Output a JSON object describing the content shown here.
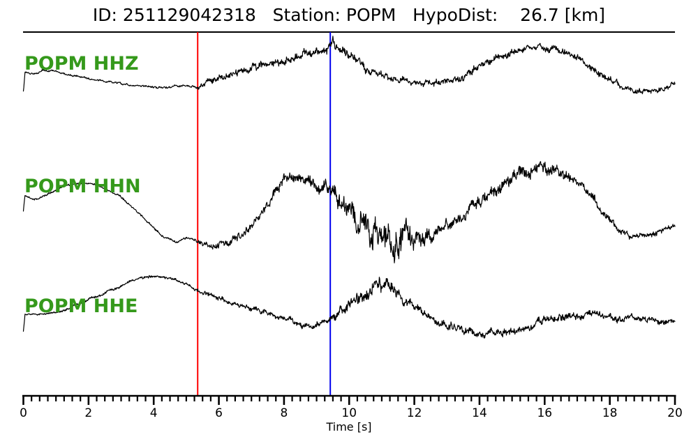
{
  "chart_data": {
    "type": "line",
    "title": "ID: 251129042318   Station: POPM   HypoDist:    26.7 [km]",
    "event": {
      "id": "251129042318",
      "station": "POPM",
      "hypodist": "26.7 [km]"
    },
    "xlabel": "Time [s]",
    "xlim": [
      0,
      20
    ],
    "x_major_ticks": [
      0,
      2,
      4,
      6,
      8,
      10,
      12,
      14,
      16,
      18,
      20
    ],
    "x_minor_step": 0.25,
    "grid": false,
    "legend": "none",
    "picks": [
      {
        "name": "p-pick",
        "time_s": 5.35,
        "color": "#ff0000"
      },
      {
        "name": "s-pick",
        "time_s": 9.42,
        "color": "#0000ee"
      }
    ],
    "traces": [
      {
        "label": "POPM HHZ",
        "seed": 7,
        "label_x": 35,
        "label_y": 100,
        "drift": [
          [
            0,
            132
          ],
          [
            0.05,
            104
          ],
          [
            0.35,
            106
          ],
          [
            0.6,
            100
          ],
          [
            1,
            102
          ],
          [
            1.5,
            108
          ],
          [
            2,
            113
          ],
          [
            2.6,
            117
          ],
          [
            3.2,
            121
          ],
          [
            3.8,
            124
          ],
          [
            4.4,
            126
          ],
          [
            4.9,
            122
          ],
          [
            5.15,
            124
          ],
          [
            5.35,
            124
          ],
          [
            5.6,
            118
          ],
          [
            6,
            112
          ],
          [
            6.5,
            105
          ],
          [
            7,
            98
          ],
          [
            7.5,
            94
          ],
          [
            8,
            88
          ],
          [
            8.5,
            82
          ],
          [
            9,
            75
          ],
          [
            9.35,
            68
          ],
          [
            9.5,
            62
          ],
          [
            9.8,
            75
          ],
          [
            10.2,
            88
          ],
          [
            10.6,
            100
          ],
          [
            11,
            110
          ],
          [
            11.5,
            116
          ],
          [
            12,
            118
          ],
          [
            12.5,
            118
          ],
          [
            13,
            116
          ],
          [
            13.5,
            110
          ],
          [
            14,
            97
          ],
          [
            14.5,
            85
          ],
          [
            15,
            76
          ],
          [
            15.4,
            70
          ],
          [
            15.8,
            68
          ],
          [
            16.2,
            70
          ],
          [
            16.6,
            74
          ],
          [
            17,
            82
          ],
          [
            17.4,
            96
          ],
          [
            17.8,
            110
          ],
          [
            18.2,
            122
          ],
          [
            18.6,
            128
          ],
          [
            19,
            131
          ],
          [
            19.4,
            130
          ],
          [
            19.7,
            126
          ],
          [
            20,
            120
          ]
        ],
        "noise_env": [
          [
            0,
            1.5
          ],
          [
            5.2,
            1.8
          ],
          [
            5.45,
            5
          ],
          [
            6,
            6
          ],
          [
            7,
            7
          ],
          [
            8,
            7
          ],
          [
            9,
            8
          ],
          [
            9.4,
            10
          ],
          [
            9.6,
            9
          ],
          [
            10.5,
            7
          ],
          [
            11.5,
            6
          ],
          [
            12.5,
            5.5
          ],
          [
            13.5,
            6
          ],
          [
            14.5,
            6.5
          ],
          [
            15.5,
            6
          ],
          [
            16.5,
            6
          ],
          [
            17.5,
            6
          ],
          [
            18.5,
            5
          ],
          [
            19.5,
            4.5
          ],
          [
            20,
            4.5
          ]
        ]
      },
      {
        "label": "POPM HHN",
        "seed": 13,
        "label_x": 35,
        "label_y": 276,
        "drift": [
          [
            0,
            303
          ],
          [
            0.05,
            281
          ],
          [
            0.3,
            287
          ],
          [
            0.7,
            280
          ],
          [
            1.1,
            270
          ],
          [
            1.5,
            264
          ],
          [
            2,
            263
          ],
          [
            2.4,
            268
          ],
          [
            2.9,
            280
          ],
          [
            3.4,
            300
          ],
          [
            3.9,
            322
          ],
          [
            4.3,
            340
          ],
          [
            4.7,
            347
          ],
          [
            5,
            342
          ],
          [
            5.2,
            344
          ],
          [
            5.35,
            347
          ],
          [
            5.6,
            352
          ],
          [
            5.9,
            353
          ],
          [
            6.3,
            348
          ],
          [
            6.7,
            337
          ],
          [
            7.1,
            320
          ],
          [
            7.5,
            295
          ],
          [
            7.9,
            262
          ],
          [
            8.15,
            254
          ],
          [
            8.4,
            255
          ],
          [
            8.7,
            260
          ],
          [
            9,
            266
          ],
          [
            9.4,
            278
          ],
          [
            9.8,
            292
          ],
          [
            10.2,
            312
          ],
          [
            10.6,
            328
          ],
          [
            11,
            340
          ],
          [
            11.5,
            347
          ],
          [
            12,
            343
          ],
          [
            12.5,
            337
          ],
          [
            13,
            325
          ],
          [
            13.5,
            308
          ],
          [
            14,
            292
          ],
          [
            14.5,
            275
          ],
          [
            15,
            258
          ],
          [
            15.5,
            246
          ],
          [
            15.9,
            240
          ],
          [
            16.3,
            243
          ],
          [
            16.7,
            253
          ],
          [
            17.1,
            268
          ],
          [
            17.5,
            288
          ],
          [
            17.9,
            312
          ],
          [
            18.3,
            330
          ],
          [
            18.7,
            340
          ],
          [
            19.1,
            338
          ],
          [
            19.5,
            332
          ],
          [
            19.8,
            326
          ],
          [
            20,
            322
          ]
        ],
        "noise_env": [
          [
            0,
            1.5
          ],
          [
            5.2,
            2
          ],
          [
            5.5,
            5
          ],
          [
            6.5,
            6
          ],
          [
            7.5,
            8
          ],
          [
            8.2,
            9
          ],
          [
            9,
            10
          ],
          [
            9.5,
            14
          ],
          [
            10,
            18
          ],
          [
            10.5,
            26
          ],
          [
            11,
            30
          ],
          [
            11.6,
            28
          ],
          [
            12.1,
            18
          ],
          [
            12.6,
            12
          ],
          [
            13.2,
            10
          ],
          [
            14,
            10
          ],
          [
            15,
            11
          ],
          [
            16,
            11
          ],
          [
            16.8,
            9
          ],
          [
            17.5,
            8
          ],
          [
            18.2,
            6
          ],
          [
            19,
            5
          ],
          [
            20,
            5
          ]
        ]
      },
      {
        "label": "POPM HHE",
        "seed": 29,
        "label_x": 35,
        "label_y": 448,
        "drift": [
          [
            0,
            476
          ],
          [
            0.05,
            452
          ],
          [
            0.5,
            451
          ],
          [
            0.9,
            449
          ],
          [
            1.4,
            443
          ],
          [
            1.9,
            432
          ],
          [
            2.4,
            422
          ],
          [
            2.9,
            413
          ],
          [
            3.3,
            403
          ],
          [
            3.7,
            398
          ],
          [
            4.1,
            396
          ],
          [
            4.5,
            399
          ],
          [
            4.9,
            406
          ],
          [
            5.35,
            416
          ],
          [
            5.8,
            424
          ],
          [
            6.3,
            432
          ],
          [
            6.8,
            440
          ],
          [
            7.3,
            447
          ],
          [
            7.8,
            455
          ],
          [
            8.3,
            462
          ],
          [
            8.8,
            468
          ],
          [
            9.1,
            466
          ],
          [
            9.4,
            456
          ],
          [
            9.7,
            446
          ],
          [
            10,
            438
          ],
          [
            10.4,
            428
          ],
          [
            10.8,
            415
          ],
          [
            11,
            410
          ],
          [
            11.2,
            412
          ],
          [
            11.5,
            420
          ],
          [
            11.9,
            434
          ],
          [
            12.3,
            450
          ],
          [
            12.7,
            462
          ],
          [
            13.1,
            470
          ],
          [
            13.6,
            474
          ],
          [
            14.1,
            477
          ],
          [
            14.6,
            477
          ],
          [
            15.1,
            474
          ],
          [
            15.5,
            470
          ],
          [
            15.8,
            462
          ],
          [
            16.1,
            457
          ],
          [
            16.6,
            455
          ],
          [
            17.1,
            453
          ],
          [
            17.6,
            452
          ],
          [
            18.1,
            456
          ],
          [
            18.6,
            455
          ],
          [
            19,
            456
          ],
          [
            19.4,
            460
          ],
          [
            19.7,
            462
          ],
          [
            20,
            464
          ]
        ],
        "noise_env": [
          [
            0,
            1.2
          ],
          [
            1,
            1.8
          ],
          [
            3,
            2.2
          ],
          [
            5,
            2.5
          ],
          [
            5.5,
            3.5
          ],
          [
            6.5,
            4
          ],
          [
            7.5,
            4.5
          ],
          [
            8.5,
            5
          ],
          [
            9.2,
            6
          ],
          [
            9.6,
            8
          ],
          [
            10.2,
            9
          ],
          [
            10.7,
            13
          ],
          [
            11.1,
            13
          ],
          [
            11.5,
            10
          ],
          [
            12,
            8
          ],
          [
            12.6,
            7
          ],
          [
            13.2,
            7
          ],
          [
            14,
            6.5
          ],
          [
            15,
            6.5
          ],
          [
            16,
            6.5
          ],
          [
            17,
            6.5
          ],
          [
            18,
            6.5
          ],
          [
            19,
            5.5
          ],
          [
            20,
            4.5
          ]
        ]
      }
    ]
  },
  "style": {
    "trace_label_color": "#35991b",
    "trace_color": "#000000",
    "axis_color": "#000000",
    "background": "#ffffff"
  }
}
